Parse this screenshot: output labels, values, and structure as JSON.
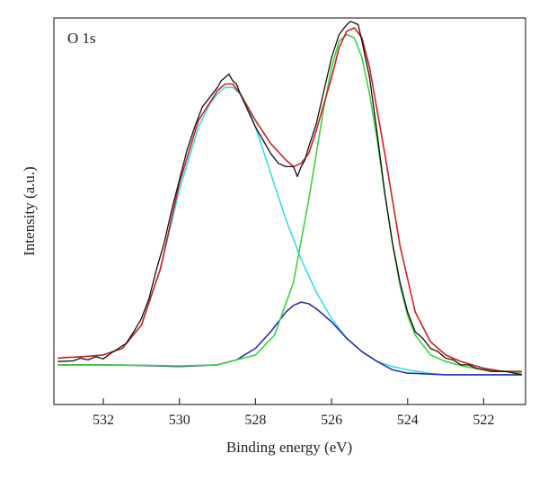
{
  "chart_data": {
    "type": "line",
    "title": "",
    "panel_label": "O 1s",
    "xlabel": "Binding energy (eV)",
    "ylabel": "Intensity (a.u.)",
    "x_reversed": true,
    "xlim": [
      533.3,
      520.9
    ],
    "ylim": [
      -0.12,
      1.05
    ],
    "x_ticks": [
      532,
      530,
      528,
      526,
      524,
      522
    ],
    "y_ticks_labeled": false,
    "grid": false,
    "legend": "none",
    "series": [
      {
        "role": "raw-data",
        "color": "#111111",
        "x": [
          533.2,
          532.8,
          532.6,
          532.4,
          532.2,
          532.0,
          531.8,
          531.6,
          531.4,
          531.2,
          531.0,
          530.8,
          530.6,
          530.4,
          530.2,
          530.0,
          529.8,
          529.6,
          529.4,
          529.2,
          529.0,
          528.9,
          528.8,
          528.7,
          528.6,
          528.5,
          528.4,
          528.2,
          528.0,
          527.8,
          527.6,
          527.4,
          527.2,
          527.0,
          526.9,
          526.8,
          526.7,
          526.6,
          526.4,
          526.2,
          526.0,
          525.8,
          525.6,
          525.5,
          525.4,
          525.3,
          525.2,
          525.0,
          524.8,
          524.6,
          524.4,
          524.2,
          524.0,
          523.8,
          523.6,
          523.4,
          523.2,
          523.0,
          522.8,
          522.6,
          522.4,
          522.2,
          522.0,
          521.8,
          521.6,
          521.4,
          521.2,
          521.0
        ],
        "y": [
          0.01,
          0.012,
          0.02,
          0.015,
          0.025,
          0.018,
          0.035,
          0.05,
          0.065,
          0.1,
          0.14,
          0.2,
          0.29,
          0.37,
          0.47,
          0.56,
          0.65,
          0.72,
          0.78,
          0.81,
          0.84,
          0.86,
          0.87,
          0.88,
          0.86,
          0.85,
          0.82,
          0.77,
          0.72,
          0.68,
          0.64,
          0.61,
          0.6,
          0.6,
          0.57,
          0.6,
          0.62,
          0.66,
          0.73,
          0.83,
          0.93,
          1.0,
          1.03,
          1.04,
          1.035,
          1.03,
          0.98,
          0.87,
          0.7,
          0.52,
          0.37,
          0.25,
          0.16,
          0.1,
          0.08,
          0.05,
          0.04,
          0.02,
          0.015,
          0.0,
          0.0,
          -0.01,
          -0.015,
          -0.02,
          -0.02,
          -0.02,
          -0.025,
          -0.03
        ]
      },
      {
        "role": "envelope-fit",
        "color": "#d21f1f",
        "x": [
          533.2,
          533.0,
          532.5,
          532.0,
          531.5,
          531.0,
          530.5,
          530.0,
          529.5,
          529.0,
          528.8,
          528.6,
          528.4,
          528.0,
          527.6,
          527.2,
          527.0,
          526.8,
          526.6,
          526.4,
          526.0,
          525.8,
          525.6,
          525.4,
          525.2,
          525.0,
          524.6,
          524.2,
          523.8,
          523.4,
          523.0,
          522.6,
          522.0,
          521.5,
          521.0
        ],
        "y": [
          0.02,
          0.022,
          0.025,
          0.03,
          0.05,
          0.12,
          0.29,
          0.55,
          0.74,
          0.83,
          0.85,
          0.85,
          0.82,
          0.74,
          0.67,
          0.62,
          0.6,
          0.61,
          0.64,
          0.71,
          0.87,
          0.96,
          1.01,
          1.02,
          0.99,
          0.9,
          0.64,
          0.36,
          0.16,
          0.07,
          0.03,
          0.01,
          -0.01,
          -0.02,
          -0.02
        ]
      },
      {
        "role": "component-peak",
        "color": "#33e0e0",
        "x": [
          533.2,
          533.0,
          532.5,
          532.0,
          531.5,
          531.0,
          530.5,
          530.0,
          529.5,
          529.2,
          529.0,
          528.8,
          528.6,
          528.4,
          528.2,
          528.0,
          527.6,
          527.2,
          526.8,
          526.4,
          526.0,
          525.6,
          525.2,
          524.8,
          524.4,
          524.0,
          523.5,
          523.0,
          522.5,
          522.0,
          521.5,
          521.0
        ],
        "y": [
          0.02,
          0.022,
          0.025,
          0.03,
          0.05,
          0.12,
          0.29,
          0.53,
          0.72,
          0.79,
          0.82,
          0.84,
          0.84,
          0.82,
          0.78,
          0.72,
          0.58,
          0.44,
          0.32,
          0.22,
          0.14,
          0.08,
          0.04,
          0.01,
          -0.005,
          -0.015,
          -0.025,
          -0.03,
          -0.03,
          -0.03,
          -0.03,
          -0.03
        ]
      },
      {
        "role": "component-peak",
        "color": "#2d2db8",
        "x": [
          533.2,
          532.0,
          531.0,
          530.0,
          529.0,
          528.5,
          528.0,
          527.6,
          527.2,
          527.0,
          526.8,
          526.6,
          526.4,
          526.0,
          525.6,
          525.2,
          524.8,
          524.4,
          524.0,
          523.0,
          522.0,
          521.0
        ],
        "y": [
          0.0,
          0.0,
          -0.002,
          -0.005,
          0.0,
          0.015,
          0.05,
          0.1,
          0.16,
          0.18,
          0.19,
          0.185,
          0.17,
          0.13,
          0.08,
          0.04,
          0.01,
          -0.015,
          -0.025,
          -0.03,
          -0.03,
          -0.03
        ]
      },
      {
        "role": "component-peak",
        "color": "#3cd23c",
        "x": [
          533.2,
          532.0,
          531.0,
          530.0,
          529.0,
          528.0,
          527.5,
          527.0,
          526.6,
          526.2,
          526.0,
          525.8,
          525.6,
          525.4,
          525.2,
          525.0,
          524.8,
          524.6,
          524.4,
          524.2,
          524.0,
          523.8,
          523.4,
          523.0,
          522.5,
          522.0,
          521.5,
          521.0
        ],
        "y": [
          0.0,
          0.0,
          -0.001,
          -0.003,
          0.0,
          0.03,
          0.09,
          0.25,
          0.5,
          0.78,
          0.9,
          0.98,
          1.0,
          0.99,
          0.93,
          0.82,
          0.68,
          0.52,
          0.37,
          0.24,
          0.15,
          0.09,
          0.03,
          0.01,
          -0.005,
          -0.015,
          -0.02,
          -0.025
        ]
      }
    ]
  }
}
